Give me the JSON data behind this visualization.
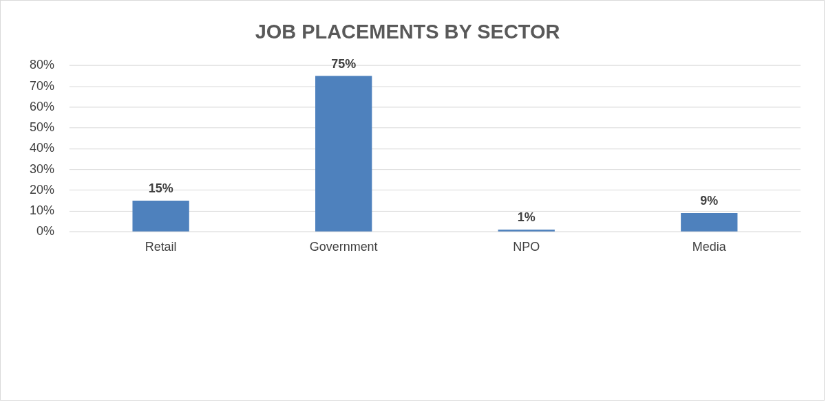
{
  "chart_data": {
    "type": "bar",
    "title": "JOB PLACEMENTS BY SECTOR",
    "categories": [
      "Retail",
      "Government",
      "NPO",
      "Media"
    ],
    "values": [
      15,
      75,
      1,
      9
    ],
    "value_labels": [
      "15%",
      "75%",
      "1%",
      "9%"
    ],
    "color": "#4e81bd",
    "ylim": [
      0,
      80
    ],
    "yticks": [
      {
        "value": 0,
        "label": "0%"
      },
      {
        "value": 10,
        "label": "10%"
      },
      {
        "value": 20,
        "label": "20%"
      },
      {
        "value": 30,
        "label": "30%"
      },
      {
        "value": 40,
        "label": "40%"
      },
      {
        "value": 50,
        "label": "50%"
      },
      {
        "value": 60,
        "label": "60%"
      },
      {
        "value": 70,
        "label": "70%"
      },
      {
        "value": 80,
        "label": "80%"
      }
    ],
    "grid": "y",
    "legend": false
  }
}
